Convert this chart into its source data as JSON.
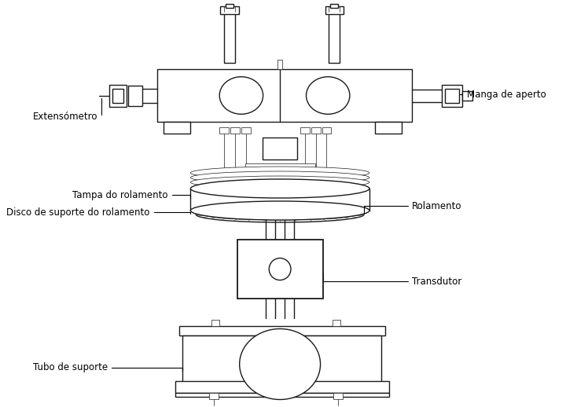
{
  "bg_color": "#ffffff",
  "line_color": "#1a1a1a",
  "lw": 1.0,
  "tlw": 0.5,
  "labels": {
    "extensometro": "Extensómetro",
    "manga": "Manga de aperto",
    "tampa": "Tampa do rolamento",
    "rolamento": "Rolamento",
    "disco": "Disco de suporte do rolamento",
    "transdutor": "Transdutor",
    "tubo": "Tubo de suporte"
  },
  "fs": 8.5
}
